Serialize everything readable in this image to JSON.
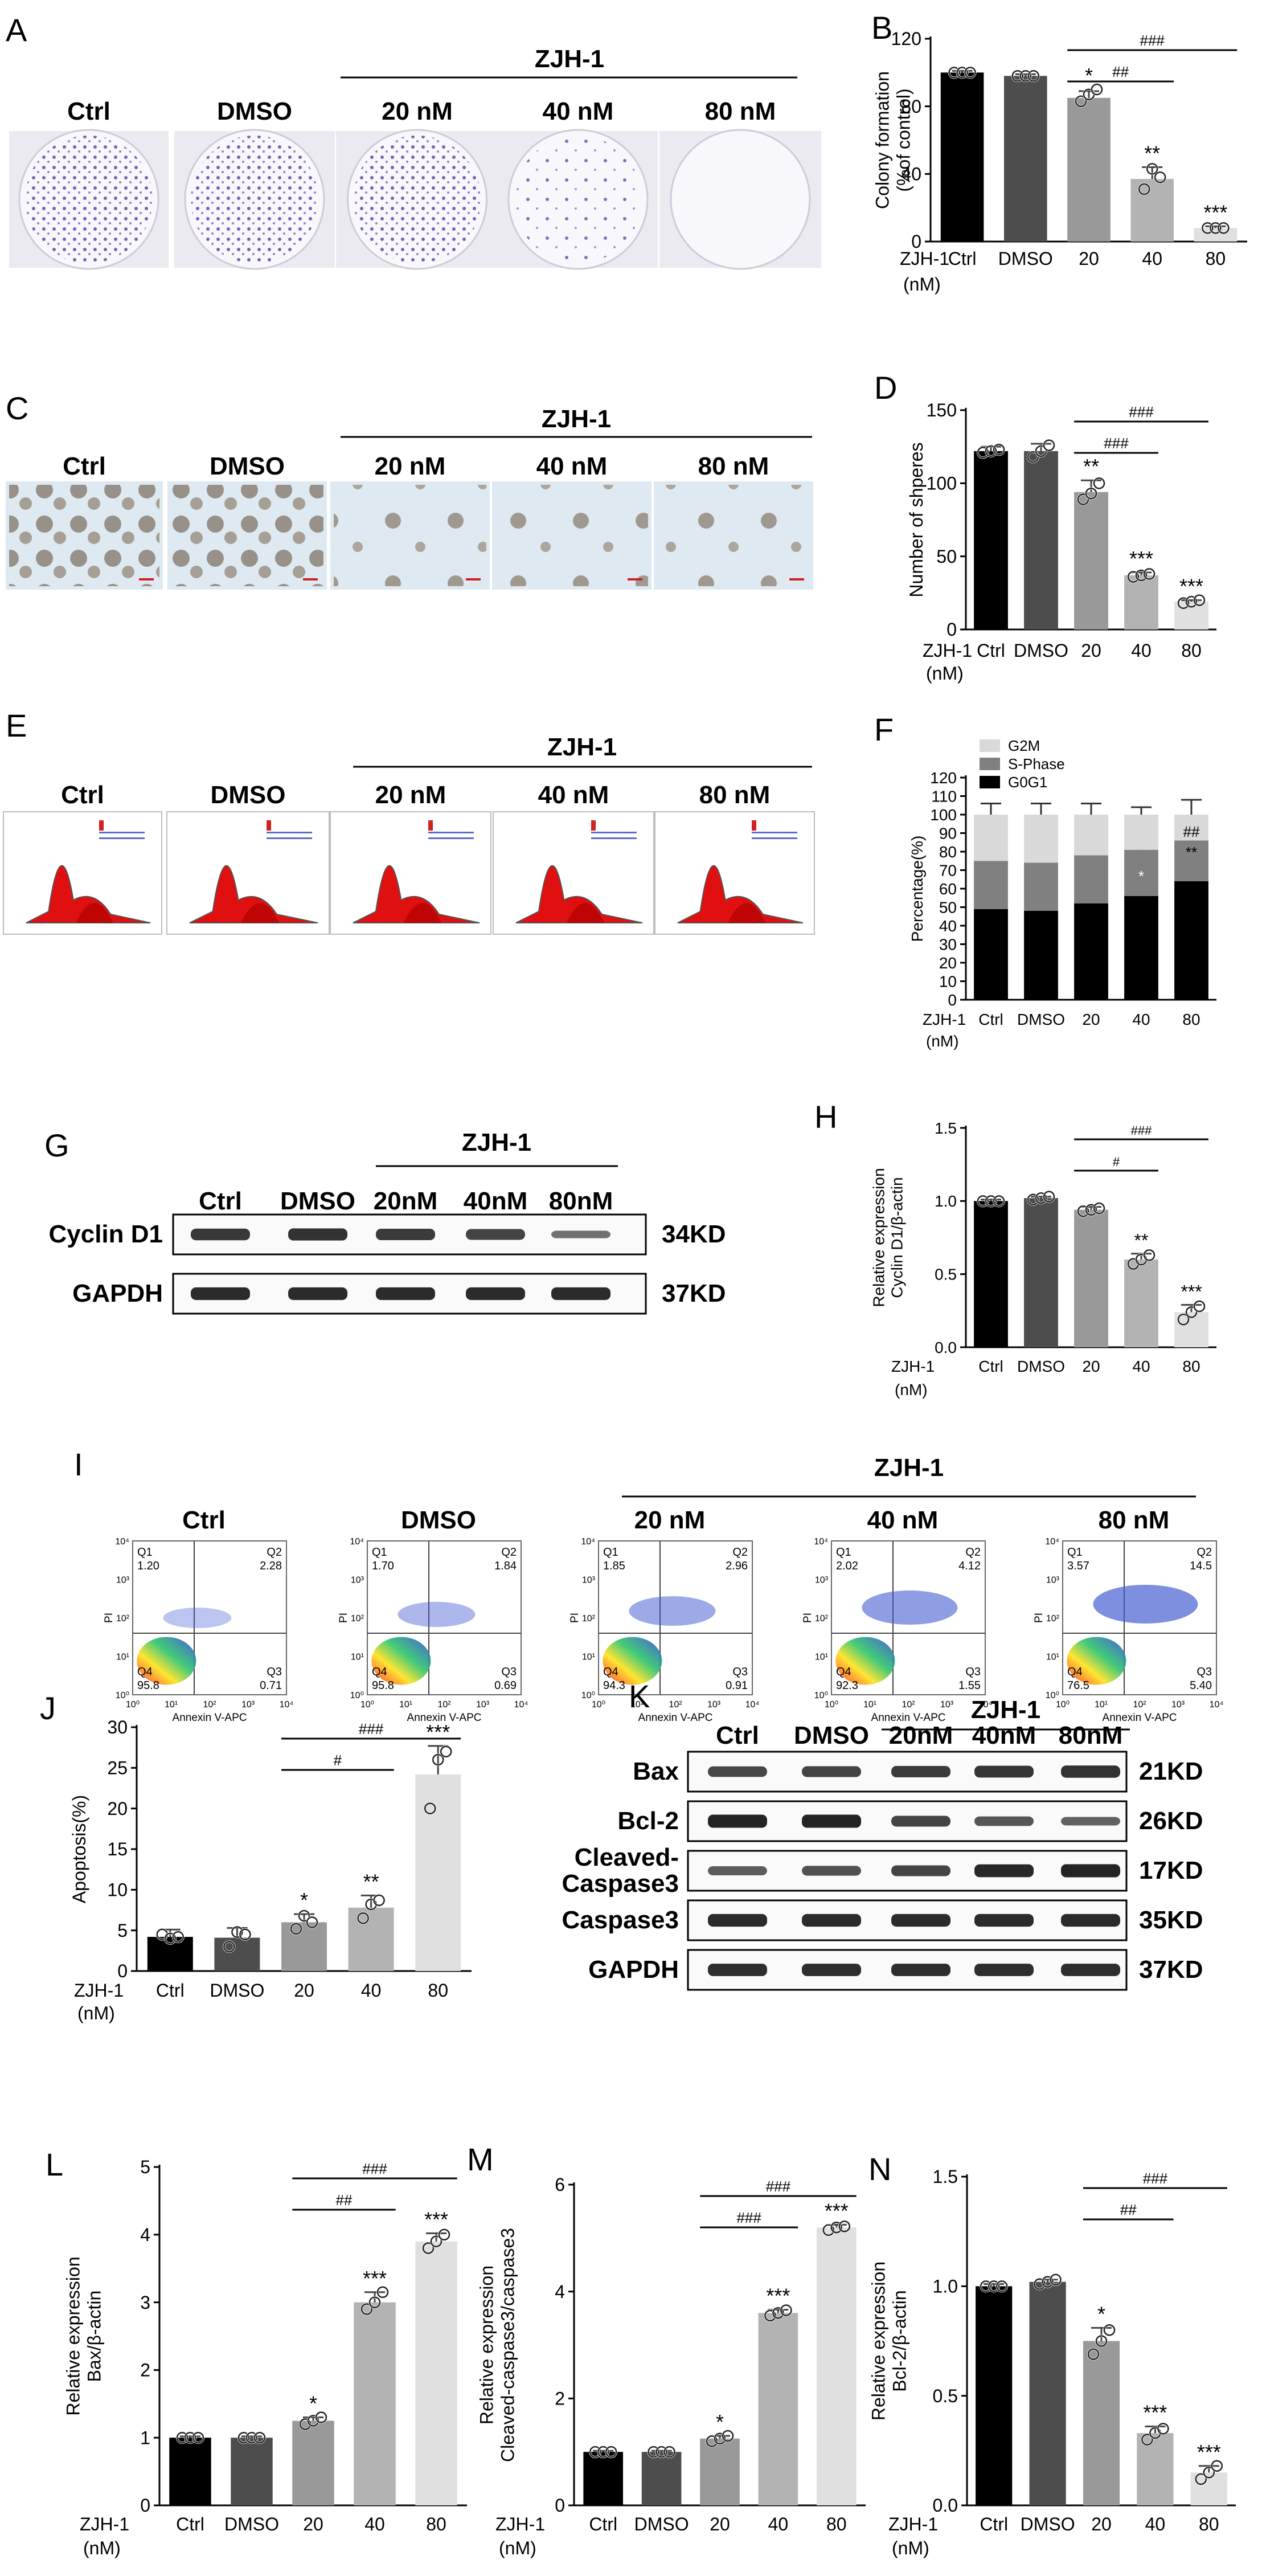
{
  "figure": {
    "group_title": "ZJH-1",
    "x_caption": [
      "ZJH-1",
      "(nM)"
    ],
    "conditions": [
      "Ctrl",
      "DMSO",
      "20 nM",
      "40 nM",
      "80 nM"
    ],
    "blot_conditions": [
      "Ctrl",
      "DMSO",
      "20nM",
      "40nM",
      "80nM"
    ]
  },
  "panels": {
    "A": {
      "label": "A"
    },
    "C": {
      "label": "C"
    },
    "E": {
      "label": "E"
    },
    "G": {
      "label": "G",
      "rows": [
        {
          "name": "Cyclin D1",
          "kd": "34KD"
        },
        {
          "name": "GAPDH",
          "kd": "37KD"
        }
      ]
    },
    "I": {
      "label": "I",
      "xaxis": "Annexin V-APC",
      "yaxis": "PI",
      "quadrants": [
        {
          "q1": "1.20",
          "q2": "2.28",
          "q3": "0.71",
          "q4": "95.8"
        },
        {
          "q1": "1.70",
          "q2": "1.84",
          "q3": "0.69",
          "q4": "95.8"
        },
        {
          "q1": "1.85",
          "q2": "2.96",
          "q3": "0.91",
          "q4": "94.3"
        },
        {
          "q1": "2.02",
          "q2": "4.12",
          "q3": "1.55",
          "q4": "92.3"
        },
        {
          "q1": "3.57",
          "q2": "14.5",
          "q3": "5.40",
          "q4": "76.5"
        }
      ]
    },
    "K": {
      "label": "K",
      "rows": [
        {
          "name": "Bax",
          "kd": "21KD"
        },
        {
          "name": "Bcl-2",
          "kd": "26KD"
        },
        {
          "name": "Cleaved-Caspase3",
          "kd": "17KD"
        },
        {
          "name": "Caspase3",
          "kd": "35KD"
        },
        {
          "name": "GAPDH",
          "kd": "37KD"
        }
      ]
    }
  },
  "chart_data": [
    {
      "panel": "B",
      "type": "bar",
      "categories": [
        "Ctrl",
        "DMSO",
        "20",
        "40",
        "80"
      ],
      "values": [
        100,
        98,
        85,
        37,
        8
      ],
      "errors": [
        1,
        1,
        4,
        7,
        1
      ],
      "points": [
        [
          100,
          100,
          100
        ],
        [
          98,
          98,
          98
        ],
        [
          83,
          87,
          90
        ],
        [
          31,
          43,
          38
        ],
        [
          8,
          8,
          8
        ]
      ],
      "ylabel": "Colony formation (%of control)",
      "ylim": [
        0,
        120
      ],
      "yticks": [
        0,
        40,
        80,
        120
      ],
      "stars": [
        "",
        "",
        "*",
        "**",
        "***"
      ],
      "brackets": [
        {
          "from": 2,
          "to": 3,
          "text": "##"
        },
        {
          "from": 2,
          "to": 4,
          "text": "###"
        }
      ]
    },
    {
      "panel": "D",
      "type": "bar",
      "categories": [
        "Ctrl",
        "DMSO",
        "20",
        "40",
        "80"
      ],
      "values": [
        122,
        122,
        94,
        37,
        19
      ],
      "errors": [
        3,
        5,
        8,
        2,
        1
      ],
      "points": [
        [
          121,
          122,
          123
        ],
        [
          118,
          122,
          126
        ],
        [
          89,
          93,
          100
        ],
        [
          36,
          37,
          38
        ],
        [
          18,
          19,
          20
        ]
      ],
      "ylabel": "Number of shperes",
      "ylim": [
        0,
        150
      ],
      "yticks": [
        0,
        50,
        100,
        150
      ],
      "stars": [
        "",
        "",
        "**",
        "***",
        "***"
      ],
      "brackets": [
        {
          "from": 2,
          "to": 3,
          "text": "###"
        },
        {
          "from": 2,
          "to": 4,
          "text": "###"
        }
      ]
    },
    {
      "panel": "F",
      "type": "bar",
      "stacked": true,
      "categories": [
        "Ctrl",
        "DMSO",
        "20",
        "40",
        "80"
      ],
      "series": [
        {
          "name": "G0G1",
          "values": [
            49,
            48,
            52,
            56,
            64
          ],
          "errors": [
            4,
            7,
            3,
            4,
            4
          ]
        },
        {
          "name": "S-Phase",
          "values": [
            26,
            26,
            26,
            25,
            22
          ],
          "errors": [
            6,
            7,
            7,
            6,
            7
          ]
        },
        {
          "name": "G2M",
          "values": [
            25,
            26,
            22,
            19,
            14
          ],
          "errors": [
            6,
            6,
            6,
            4,
            8
          ]
        }
      ],
      "ylabel": "Percentage(%)",
      "ylim": [
        0,
        120
      ],
      "yticks": [
        0,
        10,
        20,
        30,
        40,
        50,
        60,
        70,
        80,
        90,
        100,
        110,
        120
      ],
      "annotations": [
        "*",
        "##",
        "**"
      ]
    },
    {
      "panel": "H",
      "type": "bar",
      "categories": [
        "Ctrl",
        "DMSO",
        "20",
        "40",
        "80"
      ],
      "values": [
        1.0,
        1.02,
        0.94,
        0.6,
        0.24
      ],
      "errors": [
        0.01,
        0.01,
        0.02,
        0.04,
        0.05
      ],
      "points": [
        [
          1.0,
          1.0,
          1.0
        ],
        [
          1.01,
          1.02,
          1.03
        ],
        [
          0.93,
          0.94,
          0.95
        ],
        [
          0.57,
          0.6,
          0.63
        ],
        [
          0.19,
          0.24,
          0.28
        ]
      ],
      "ylabel": "Relative expression Cyclin D1/β-actin",
      "ylim": [
        0,
        1.5
      ],
      "yticks": [
        0.0,
        0.5,
        1.0,
        1.5
      ],
      "stars": [
        "",
        "",
        "",
        "**",
        "***"
      ],
      "brackets": [
        {
          "from": 2,
          "to": 3,
          "text": "#"
        },
        {
          "from": 2,
          "to": 4,
          "text": "###"
        }
      ]
    },
    {
      "panel": "J",
      "type": "bar",
      "categories": [
        "Ctrl",
        "DMSO",
        "20",
        "40",
        "80"
      ],
      "values": [
        4.2,
        4.1,
        6.0,
        7.8,
        24.2
      ],
      "errors": [
        0.9,
        1.2,
        1.0,
        1.5,
        3.5
      ],
      "points": [
        [
          4.5,
          4.0,
          4.2
        ],
        [
          3.0,
          4.8,
          4.5
        ],
        [
          5.2,
          6.8,
          6.0
        ],
        [
          6.5,
          8.2,
          8.7
        ],
        [
          20.0,
          26.0,
          27.0
        ]
      ],
      "ylabel": "Apoptosis(%)",
      "ylim": [
        0,
        30
      ],
      "yticks": [
        0,
        5,
        10,
        15,
        20,
        25,
        30
      ],
      "stars": [
        "",
        "",
        "*",
        "**",
        "***"
      ],
      "brackets": [
        {
          "from": 2,
          "to": 3,
          "text": "#"
        },
        {
          "from": 2,
          "to": 4,
          "text": "###"
        }
      ]
    },
    {
      "panel": "L",
      "type": "bar",
      "categories": [
        "Ctrl",
        "DMSO",
        "20",
        "40",
        "80"
      ],
      "values": [
        1.0,
        1.0,
        1.25,
        3.0,
        3.9
      ],
      "errors": [
        0.02,
        0.02,
        0.05,
        0.15,
        0.12
      ],
      "points": [
        [
          1.0,
          1.0,
          1.0
        ],
        [
          1.0,
          1.0,
          1.0
        ],
        [
          1.2,
          1.25,
          1.3
        ],
        [
          2.9,
          3.0,
          3.15
        ],
        [
          3.8,
          3.9,
          4.0
        ]
      ],
      "ylabel": "Relative expression Bax/β-actin",
      "ylim": [
        0,
        5
      ],
      "yticks": [
        0,
        1,
        2,
        3,
        4,
        5
      ],
      "stars": [
        "",
        "",
        "*",
        "***",
        "***"
      ],
      "brackets": [
        {
          "from": 2,
          "to": 3,
          "text": "##"
        },
        {
          "from": 2,
          "to": 4,
          "text": "###"
        }
      ]
    },
    {
      "panel": "M",
      "type": "bar",
      "categories": [
        "Ctrl",
        "DMSO",
        "20",
        "40",
        "80"
      ],
      "values": [
        1.0,
        1.0,
        1.25,
        3.6,
        5.2
      ],
      "errors": [
        0.02,
        0.02,
        0.05,
        0.06,
        0.05
      ],
      "points": [
        [
          1.0,
          1.0,
          1.0
        ],
        [
          1.0,
          1.0,
          1.0
        ],
        [
          1.2,
          1.25,
          1.3
        ],
        [
          3.55,
          3.6,
          3.65
        ],
        [
          5.15,
          5.2,
          5.22
        ]
      ],
      "ylabel": "Relative expression Cleaved-caspase3/caspase3",
      "ylim": [
        0,
        6
      ],
      "yticks": [
        0,
        2,
        4,
        6
      ],
      "stars": [
        "",
        "",
        "*",
        "***",
        "***"
      ],
      "brackets": [
        {
          "from": 2,
          "to": 3,
          "text": "###"
        },
        {
          "from": 2,
          "to": 4,
          "text": "###"
        }
      ]
    },
    {
      "panel": "N",
      "type": "bar",
      "categories": [
        "Ctrl",
        "DMSO",
        "20",
        "40",
        "80"
      ],
      "values": [
        1.0,
        1.02,
        0.75,
        0.33,
        0.15
      ],
      "errors": [
        0.01,
        0.01,
        0.06,
        0.03,
        0.03
      ],
      "points": [
        [
          1.0,
          1.0,
          1.0
        ],
        [
          1.01,
          1.02,
          1.03
        ],
        [
          0.69,
          0.75,
          0.8
        ],
        [
          0.3,
          0.33,
          0.35
        ],
        [
          0.12,
          0.15,
          0.18
        ]
      ],
      "ylabel": "Relative expression Bcl-2/β-actin",
      "ylim": [
        0,
        1.5
      ],
      "yticks": [
        0.0,
        0.5,
        1.0,
        1.5
      ],
      "stars": [
        "",
        "",
        "*",
        "***",
        "***"
      ],
      "brackets": [
        {
          "from": 2,
          "to": 3,
          "text": "##"
        },
        {
          "from": 2,
          "to": 4,
          "text": "###"
        }
      ]
    }
  ]
}
